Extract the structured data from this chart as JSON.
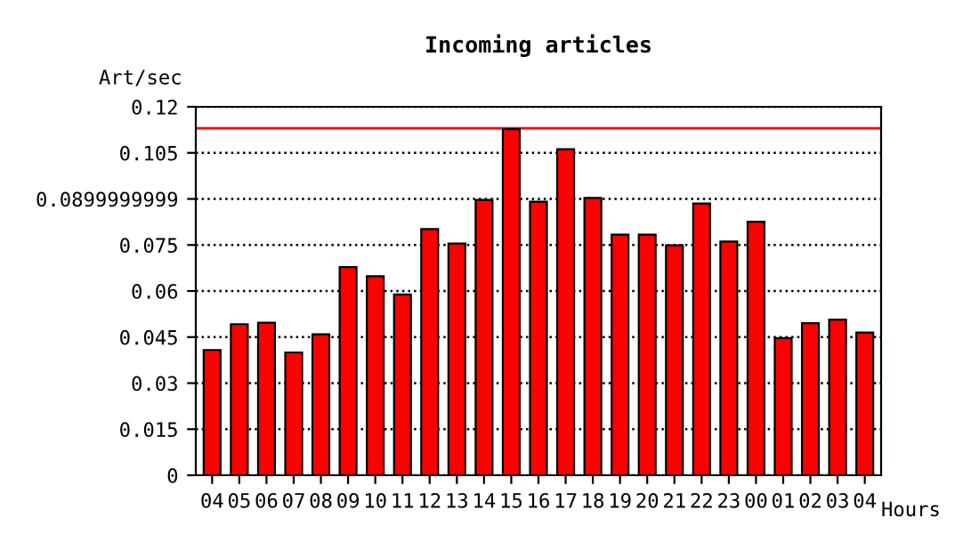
{
  "chart_data": {
    "type": "bar",
    "title": "Incoming articles",
    "ylabel": "Art/sec",
    "xlabel": "Hours",
    "categories": [
      "04",
      "05",
      "06",
      "07",
      "08",
      "09",
      "10",
      "11",
      "12",
      "13",
      "14",
      "15",
      "16",
      "17",
      "18",
      "19",
      "20",
      "21",
      "22",
      "23",
      "00",
      "01",
      "02",
      "03",
      "04"
    ],
    "values": [
      0.0408,
      0.0492,
      0.0497,
      0.04,
      0.0459,
      0.0678,
      0.0648,
      0.0589,
      0.0802,
      0.0755,
      0.0897,
      0.1127,
      0.0891,
      0.1062,
      0.0903,
      0.0784,
      0.0784,
      0.0749,
      0.0885,
      0.0761,
      0.0826,
      0.0447,
      0.0495,
      0.0507,
      0.0465
    ],
    "color": "#ff0000",
    "ylim": [
      0,
      0.12
    ],
    "yticks": [
      0,
      0.015,
      0.03,
      0.045,
      0.06,
      0.075,
      {
        "value": 0.0899999999,
        "label": "0.0899999999"
      },
      0.105,
      0.12
    ],
    "grid": "y",
    "line_style": "dotted",
    "ref_lines": [
      {
        "axis": "y",
        "value": 0.113,
        "color": "#ff0000"
      }
    ]
  }
}
